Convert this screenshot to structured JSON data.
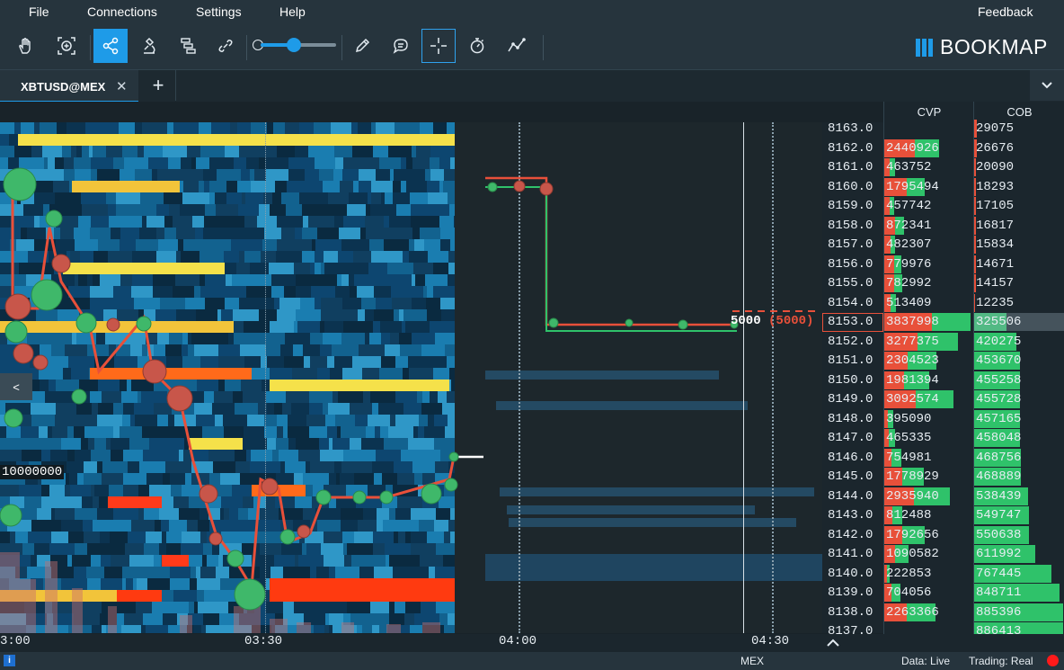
{
  "menu": {
    "file": "File",
    "connections": "Connections",
    "settings": "Settings",
    "help": "Help",
    "feedback": "Feedback"
  },
  "toolbar": {
    "logo": "BOOKMAP",
    "active_tool": "share-icon"
  },
  "tabs": [
    {
      "label": "XBTUSD@MEX",
      "close": "✕"
    }
  ],
  "add_tab": "+",
  "columns": {
    "cvp": "CVP",
    "cob": "COB"
  },
  "price_rows": [
    {
      "price": "8163.0",
      "cvp": "",
      "cob": "29075"
    },
    {
      "price": "8162.0",
      "cvp": "2440926",
      "cob": "26676"
    },
    {
      "price": "8161.0",
      "cvp": "463752",
      "cob": "20090"
    },
    {
      "price": "8160.0",
      "cvp": "1795494",
      "cob": "18293"
    },
    {
      "price": "8159.0",
      "cvp": "457742",
      "cob": "17105"
    },
    {
      "price": "8158.0",
      "cvp": "872341",
      "cob": "16817"
    },
    {
      "price": "8157.0",
      "cvp": "482307",
      "cob": "15834"
    },
    {
      "price": "8156.0",
      "cvp": "779976",
      "cob": "14671"
    },
    {
      "price": "8155.0",
      "cvp": "782992",
      "cob": "14157"
    },
    {
      "price": "8154.0",
      "cvp": "513409",
      "cob": "12235"
    },
    {
      "price": "8153.0",
      "cvp": "3837998",
      "cob": "325506"
    },
    {
      "price": "8152.0",
      "cvp": "3277375",
      "cob": "420275"
    },
    {
      "price": "8151.0",
      "cvp": "2304523",
      "cob": "453670"
    },
    {
      "price": "8150.0",
      "cvp": "1981394",
      "cob": "455258"
    },
    {
      "price": "8149.0",
      "cvp": "3092574",
      "cob": "455728"
    },
    {
      "price": "8148.0",
      "cvp": "395090",
      "cob": "457165"
    },
    {
      "price": "8147.0",
      "cvp": "465335",
      "cob": "458048"
    },
    {
      "price": "8146.0",
      "cvp": "754981",
      "cob": "468756"
    },
    {
      "price": "8145.0",
      "cvp": "1778929",
      "cob": "468889"
    },
    {
      "price": "8144.0",
      "cvp": "2935940",
      "cob": "538439"
    },
    {
      "price": "8143.0",
      "cvp": "812488",
      "cob": "549747"
    },
    {
      "price": "8142.0",
      "cvp": "1792656",
      "cob": "550638"
    },
    {
      "price": "8141.0",
      "cvp": "1090582",
      "cob": "611992"
    },
    {
      "price": "8140.0",
      "cvp": "222853",
      "cob": "767445"
    },
    {
      "price": "8139.0",
      "cvp": "704056",
      "cob": "848711"
    },
    {
      "price": "8138.0",
      "cvp": "2263366",
      "cob": "885396"
    },
    {
      "price": "8137.0",
      "cvp": "",
      "cob": "886413"
    }
  ],
  "current_order": {
    "size": "5000",
    "pending": "(5000)"
  },
  "volume_label": "10000000",
  "collapse_arrow": "<",
  "time_ticks": [
    "3:00",
    "03:30",
    "04:00",
    "04:30"
  ],
  "status": {
    "exchange": "MEX",
    "data": "Data: Live",
    "trading": "Trading: Real",
    "info": "i"
  },
  "colors": {
    "accent": "#1e9be8",
    "bid": "#2fc26a",
    "ask": "#e8503a"
  }
}
